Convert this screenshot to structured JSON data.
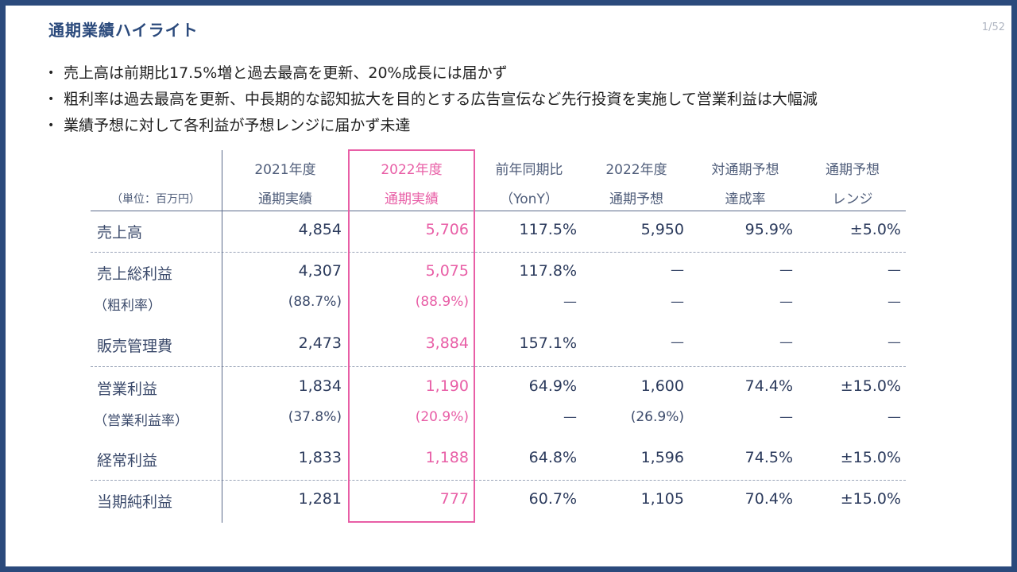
{
  "slide": {
    "title": "通期業績ハイライト",
    "page_number": "1/52"
  },
  "bullets": [
    "売上高は前期比17.5%増と過去最高を更新、20%成長には届かず",
    "粗利率は過去最高を更新、中長期的な認知拡大を目的とする広告宣伝など先行投資を実施して営業利益は大幅減",
    "業績予想に対して各利益が予想レンジに届かず未達"
  ],
  "bullet_marker": "•",
  "table": {
    "unit_label": "（単位：百万円）",
    "columns": [
      {
        "line1": "2021年度",
        "line2": "通期実績"
      },
      {
        "line1": "2022年度",
        "line2": "通期実績"
      },
      {
        "line1": "前年同期比",
        "line2": "（YonY）"
      },
      {
        "line1": "2022年度",
        "line2": "通期予想"
      },
      {
        "line1": "対通期予想",
        "line2": "達成率"
      },
      {
        "line1": "通期予想",
        "line2": "レンジ"
      }
    ],
    "highlight_color": "#e85ea6",
    "rows": [
      {
        "label": "売上高",
        "values": [
          "4,854",
          "5,706",
          "117.5%",
          "5,950",
          "95.9%",
          "±5.0%"
        ]
      },
      {
        "label": "売上総利益",
        "values": [
          "4,307",
          "5,075",
          "117.8%",
          "—",
          "—",
          "—"
        ]
      },
      {
        "label": "（粗利率）",
        "values": [
          "(88.7%)",
          "(88.9%)",
          "—",
          "—",
          "—",
          "—"
        ]
      },
      {
        "label": "販売管理費",
        "values": [
          "2,473",
          "3,884",
          "157.1%",
          "—",
          "—",
          "—"
        ]
      },
      {
        "label": "営業利益",
        "values": [
          "1,834",
          "1,190",
          "64.9%",
          "1,600",
          "74.4%",
          "±15.0%"
        ]
      },
      {
        "label": "（営業利益率）",
        "values": [
          "(37.8%)",
          "(20.9%)",
          "—",
          "(26.9%)",
          "—",
          "—"
        ]
      },
      {
        "label": "経常利益",
        "values": [
          "1,833",
          "1,188",
          "64.8%",
          "1,596",
          "74.5%",
          "±15.0%"
        ]
      },
      {
        "label": "当期純利益",
        "values": [
          "1,281",
          "777",
          "60.7%",
          "1,105",
          "70.4%",
          "±15.0%"
        ]
      }
    ]
  },
  "colors": {
    "frame": "#2b4a7c",
    "title": "#2b4a7c",
    "text": "#33425f",
    "highlight": "#e85ea6"
  }
}
